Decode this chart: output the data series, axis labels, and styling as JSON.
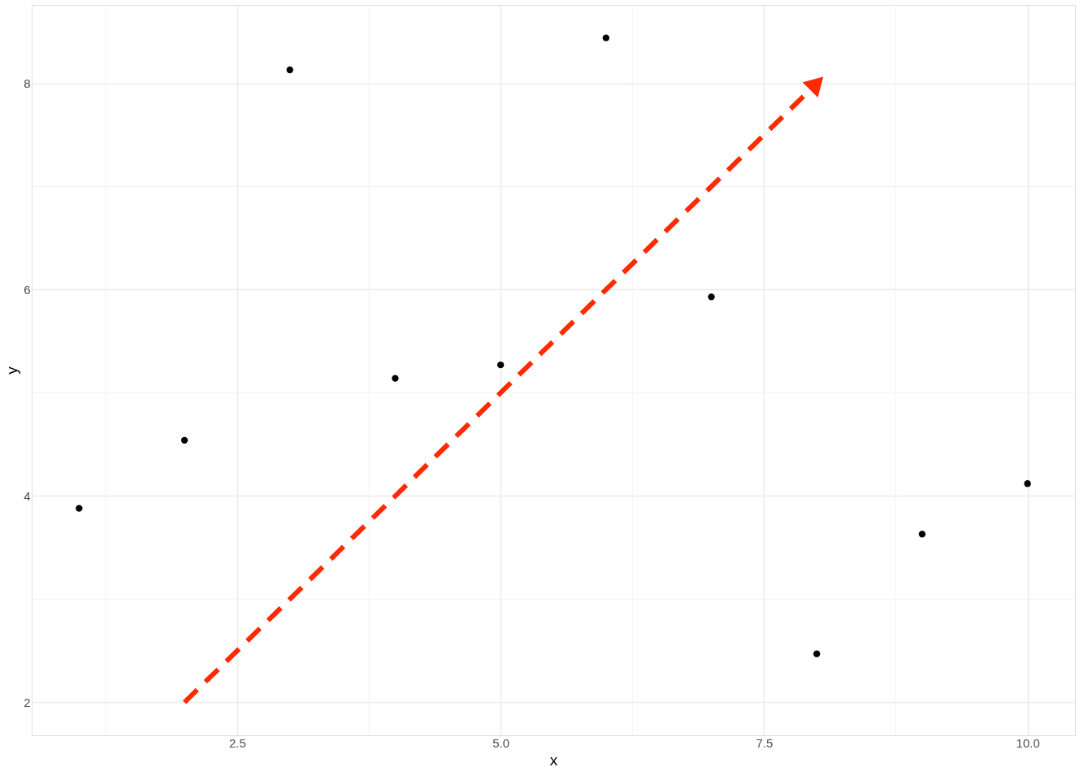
{
  "chart_data": {
    "type": "scatter",
    "xlabel": "x",
    "ylabel": "y",
    "series": [
      {
        "type": "scatter",
        "color": "#000000",
        "marker": "circle",
        "x": [
          1,
          2,
          3,
          4,
          5,
          6,
          7,
          8,
          9,
          10
        ],
        "values": [
          3.88,
          4.54,
          8.13,
          5.14,
          5.27,
          8.44,
          5.93,
          2.47,
          3.63,
          4.12
        ]
      },
      {
        "type": "line",
        "color": "#ff2a00",
        "line_style": "dashed",
        "x": [
          2,
          8
        ],
        "values": [
          2,
          8
        ]
      }
    ],
    "xlim": [
      0.55,
      10.45
    ],
    "ylim": [
      1.68,
      8.76
    ],
    "xticks": [
      2.5,
      {
        "value": 5,
        "label": "5.0"
      },
      7.5,
      {
        "value": 10,
        "label": "10.0"
      }
    ],
    "yticks": [
      2,
      4,
      6,
      8
    ],
    "grid": true
  }
}
